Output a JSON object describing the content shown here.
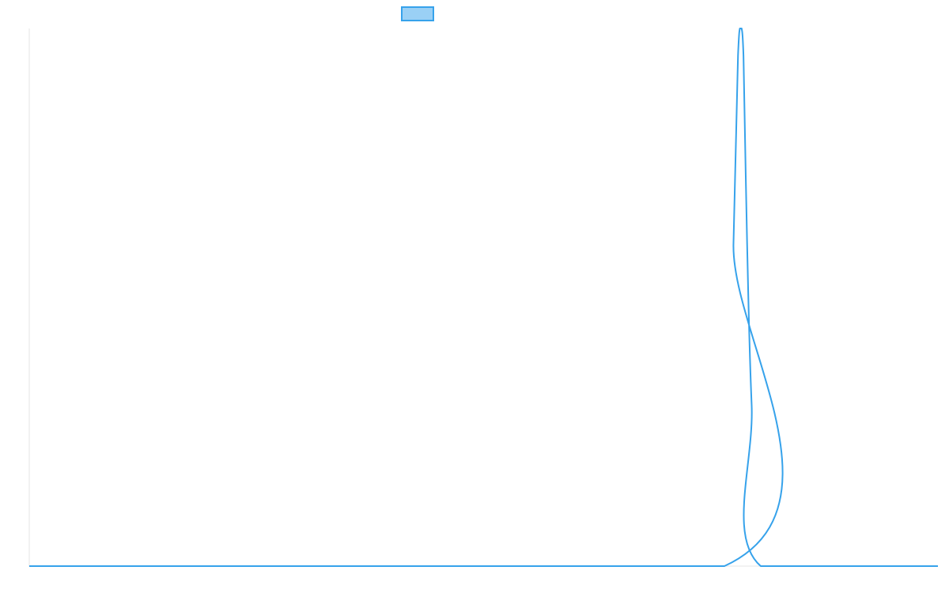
{
  "chart_data": {
    "type": "line",
    "title": "",
    "xlabel": "",
    "ylabel": "",
    "grid": false,
    "legend": {
      "position": "top",
      "entries": [
        {
          "label": ""
        }
      ]
    },
    "xlim": [
      0,
      100
    ],
    "ylim": [
      0,
      1
    ],
    "series": [
      {
        "color": "#36a2eb",
        "fill": "#9ad0f5",
        "x": [
          0,
          76.5,
          77.5,
          78.0,
          78.2,
          78.4,
          78.6,
          79.0,
          79.5,
          80.5,
          100
        ],
        "y": [
          0,
          0,
          0.6,
          0.95,
          1.0,
          1.0,
          0.95,
          0.6,
          0.3,
          0,
          0
        ]
      }
    ]
  }
}
